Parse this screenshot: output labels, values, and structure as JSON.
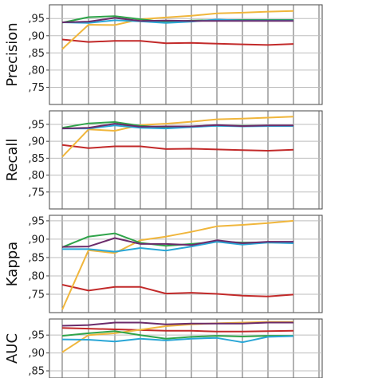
{
  "chart_data": [
    {
      "type": "line",
      "ylabel": "Precision",
      "ylim": [
        0.7,
        0.99
      ],
      "yticks": [
        ",75",
        ",80",
        ",85",
        ",90",
        ",95"
      ],
      "ytick_values": [
        0.75,
        0.8,
        0.85,
        0.9,
        0.95
      ],
      "grid": true,
      "x": [
        1,
        2,
        3,
        4,
        5,
        6,
        7,
        8,
        9,
        10
      ],
      "series": [
        {
          "color": "#c22a2a",
          "values": [
            0.889,
            0.882,
            0.885,
            0.885,
            0.878,
            0.879,
            0.877,
            0.875,
            0.873,
            0.876
          ]
        },
        {
          "color": "#f0b63c",
          "values": [
            0.861,
            0.932,
            0.931,
            0.948,
            0.953,
            0.958,
            0.965,
            0.967,
            0.97,
            0.972
          ]
        },
        {
          "color": "#2fa44a",
          "values": [
            0.938,
            0.954,
            0.957,
            0.948,
            0.94,
            0.944,
            0.946,
            0.946,
            0.946,
            0.946
          ]
        },
        {
          "color": "#29a6d6",
          "values": [
            0.939,
            0.937,
            0.945,
            0.942,
            0.937,
            0.941,
            0.947,
            0.944,
            0.944,
            0.944
          ]
        },
        {
          "color": "#6b2b6b",
          "values": [
            0.939,
            0.941,
            0.952,
            0.943,
            0.944,
            0.943,
            0.943,
            0.943,
            0.943,
            0.943
          ]
        }
      ]
    },
    {
      "type": "line",
      "ylabel": "Recall",
      "ylim": [
        0.7,
        0.99
      ],
      "yticks": [
        ",75",
        ",80",
        ",85",
        ",90",
        ",95"
      ],
      "ytick_values": [
        0.75,
        0.8,
        0.85,
        0.9,
        0.95
      ],
      "grid": true,
      "x": [
        1,
        2,
        3,
        4,
        5,
        6,
        7,
        8,
        9,
        10
      ],
      "series": [
        {
          "color": "#c22a2a",
          "values": [
            0.889,
            0.88,
            0.885,
            0.885,
            0.877,
            0.878,
            0.876,
            0.874,
            0.872,
            0.875
          ]
        },
        {
          "color": "#f0b63c",
          "values": [
            0.854,
            0.935,
            0.931,
            0.948,
            0.952,
            0.958,
            0.965,
            0.967,
            0.97,
            0.973
          ]
        },
        {
          "color": "#2fa44a",
          "values": [
            0.94,
            0.953,
            0.957,
            0.946,
            0.941,
            0.944,
            0.946,
            0.946,
            0.946,
            0.946
          ]
        },
        {
          "color": "#29a6d6",
          "values": [
            0.938,
            0.938,
            0.947,
            0.94,
            0.938,
            0.942,
            0.946,
            0.944,
            0.945,
            0.945
          ]
        },
        {
          "color": "#6b2b6b",
          "values": [
            0.938,
            0.94,
            0.952,
            0.943,
            0.944,
            0.944,
            0.948,
            0.945,
            0.947,
            0.947
          ]
        }
      ]
    },
    {
      "type": "line",
      "ylabel": "Kappa",
      "ylim": [
        0.7,
        0.965
      ],
      "yticks": [
        ",75",
        ",80",
        ",85",
        ",90",
        ",95"
      ],
      "ytick_values": [
        0.75,
        0.8,
        0.85,
        0.9,
        0.95
      ],
      "grid": true,
      "x": [
        1,
        2,
        3,
        4,
        5,
        6,
        7,
        8,
        9,
        10
      ],
      "series": [
        {
          "color": "#c22a2a",
          "values": [
            0.776,
            0.76,
            0.77,
            0.77,
            0.752,
            0.754,
            0.751,
            0.746,
            0.744,
            0.749
          ]
        },
        {
          "color": "#f0b63c",
          "values": [
            0.708,
            0.87,
            0.862,
            0.897,
            0.907,
            0.92,
            0.935,
            0.939,
            0.944,
            0.95
          ]
        },
        {
          "color": "#2fa44a",
          "values": [
            0.878,
            0.907,
            0.916,
            0.89,
            0.882,
            0.887,
            0.893,
            0.891,
            0.891,
            0.891
          ]
        },
        {
          "color": "#29a6d6",
          "values": [
            0.873,
            0.873,
            0.866,
            0.876,
            0.869,
            0.88,
            0.893,
            0.885,
            0.891,
            0.889
          ]
        },
        {
          "color": "#6b2b6b",
          "values": [
            0.879,
            0.88,
            0.903,
            0.887,
            0.887,
            0.884,
            0.897,
            0.889,
            0.893,
            0.893
          ]
        }
      ]
    },
    {
      "type": "line",
      "ylabel": "AUC",
      "ylim": [
        0.83,
        0.995
      ],
      "yticks": [
        ",85",
        ",90",
        ",95"
      ],
      "ytick_values": [
        0.85,
        0.9,
        0.95
      ],
      "grid": true,
      "x": [
        1,
        2,
        3,
        4,
        5,
        6,
        7,
        8,
        9,
        10
      ],
      "series": [
        {
          "color": "#c22a2a",
          "values": [
            0.97,
            0.968,
            0.966,
            0.964,
            0.962,
            0.962,
            0.96,
            0.96,
            0.961,
            0.962
          ]
        },
        {
          "color": "#f0b63c",
          "values": [
            0.902,
            0.95,
            0.955,
            0.965,
            0.975,
            0.98,
            0.983,
            0.985,
            0.987,
            0.987
          ]
        },
        {
          "color": "#2fa44a",
          "values": [
            0.948,
            0.955,
            0.961,
            0.95,
            0.94,
            0.945,
            0.948,
            0.946,
            0.948,
            0.948
          ]
        },
        {
          "color": "#29a6d6",
          "values": [
            0.938,
            0.937,
            0.932,
            0.94,
            0.935,
            0.94,
            0.942,
            0.93,
            0.945,
            0.947
          ]
        },
        {
          "color": "#6b2b6b",
          "values": [
            0.976,
            0.978,
            0.985,
            0.985,
            0.98,
            0.982,
            0.982,
            0.982,
            0.985,
            0.985
          ]
        }
      ]
    }
  ]
}
